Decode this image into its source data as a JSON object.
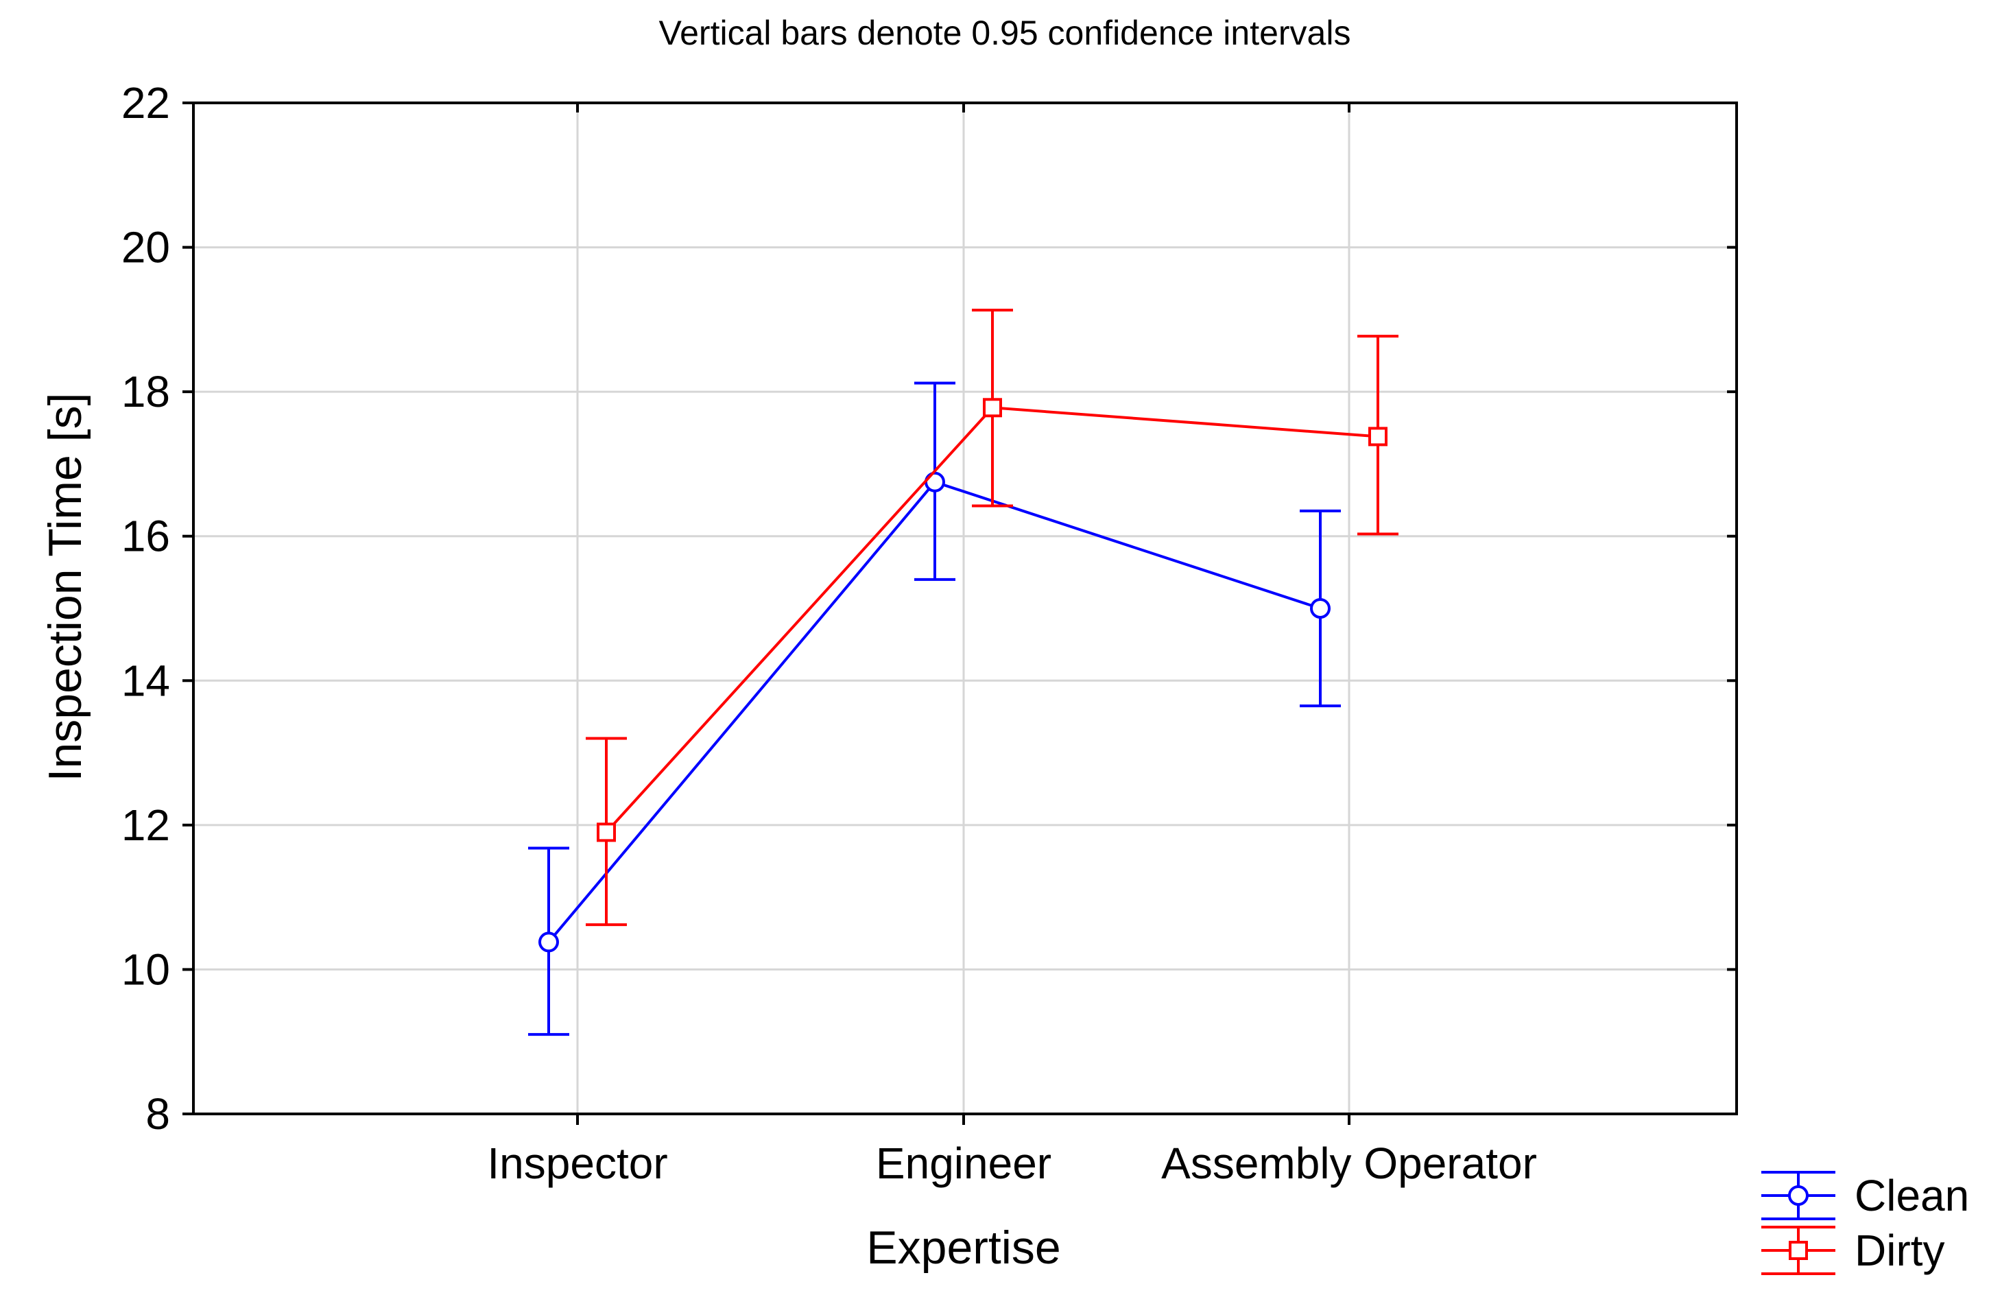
{
  "chart_data": {
    "type": "line",
    "title": "Vertical bars denote 0.95 confidence intervals",
    "xlabel": "Expertise",
    "ylabel": "Inspection Time [s]",
    "categories": [
      "Inspector",
      "Engineer",
      "Assembly Operator"
    ],
    "ylim": [
      8,
      22
    ],
    "yticks": [
      8,
      10,
      12,
      14,
      16,
      18,
      20,
      22
    ],
    "yticklabels": [
      "8",
      "10",
      "12",
      "14",
      "16",
      "18",
      "20",
      "22"
    ],
    "grid": true,
    "legend_position": "bottom-right",
    "series": [
      {
        "name": "Clean",
        "color": "#0000ff",
        "marker": "circle",
        "values": [
          10.38,
          16.75,
          15.0
        ],
        "ci_lower": [
          9.1,
          15.4,
          13.65
        ],
        "ci_upper": [
          11.68,
          18.12,
          16.35
        ]
      },
      {
        "name": "Dirty",
        "color": "#ff0000",
        "marker": "square",
        "values": [
          11.9,
          17.78,
          17.38
        ],
        "ci_lower": [
          10.62,
          16.42,
          16.03
        ],
        "ci_upper": [
          13.2,
          19.13,
          18.77
        ]
      }
    ]
  }
}
